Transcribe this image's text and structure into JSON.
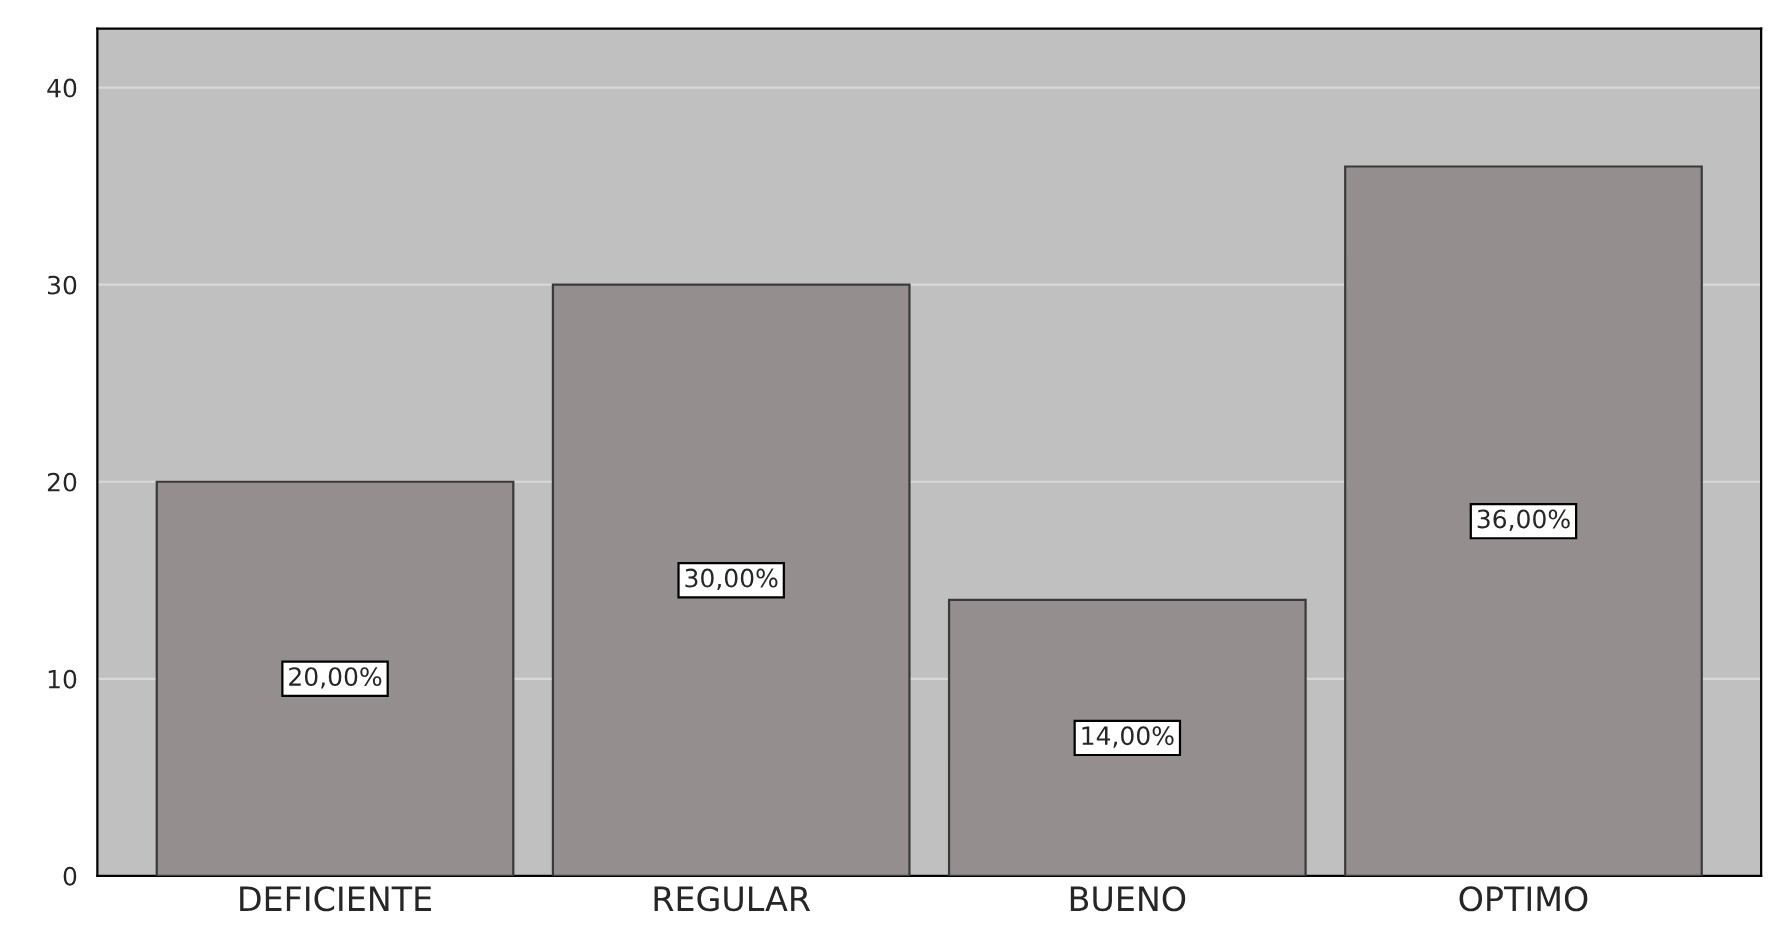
{
  "chart_data": {
    "type": "bar",
    "categories": [
      "DEFICIENTE",
      "REGULAR",
      "BUENO",
      "OPTIMO"
    ],
    "values": [
      20,
      30,
      14,
      36
    ],
    "value_labels": [
      "20,00%",
      "30,00%",
      "14,00%",
      "36,00%"
    ],
    "color": "#948f8e",
    "ylim": [
      0,
      43
    ],
    "yticks": [
      0,
      10,
      20,
      30,
      40
    ],
    "grid": "y"
  }
}
